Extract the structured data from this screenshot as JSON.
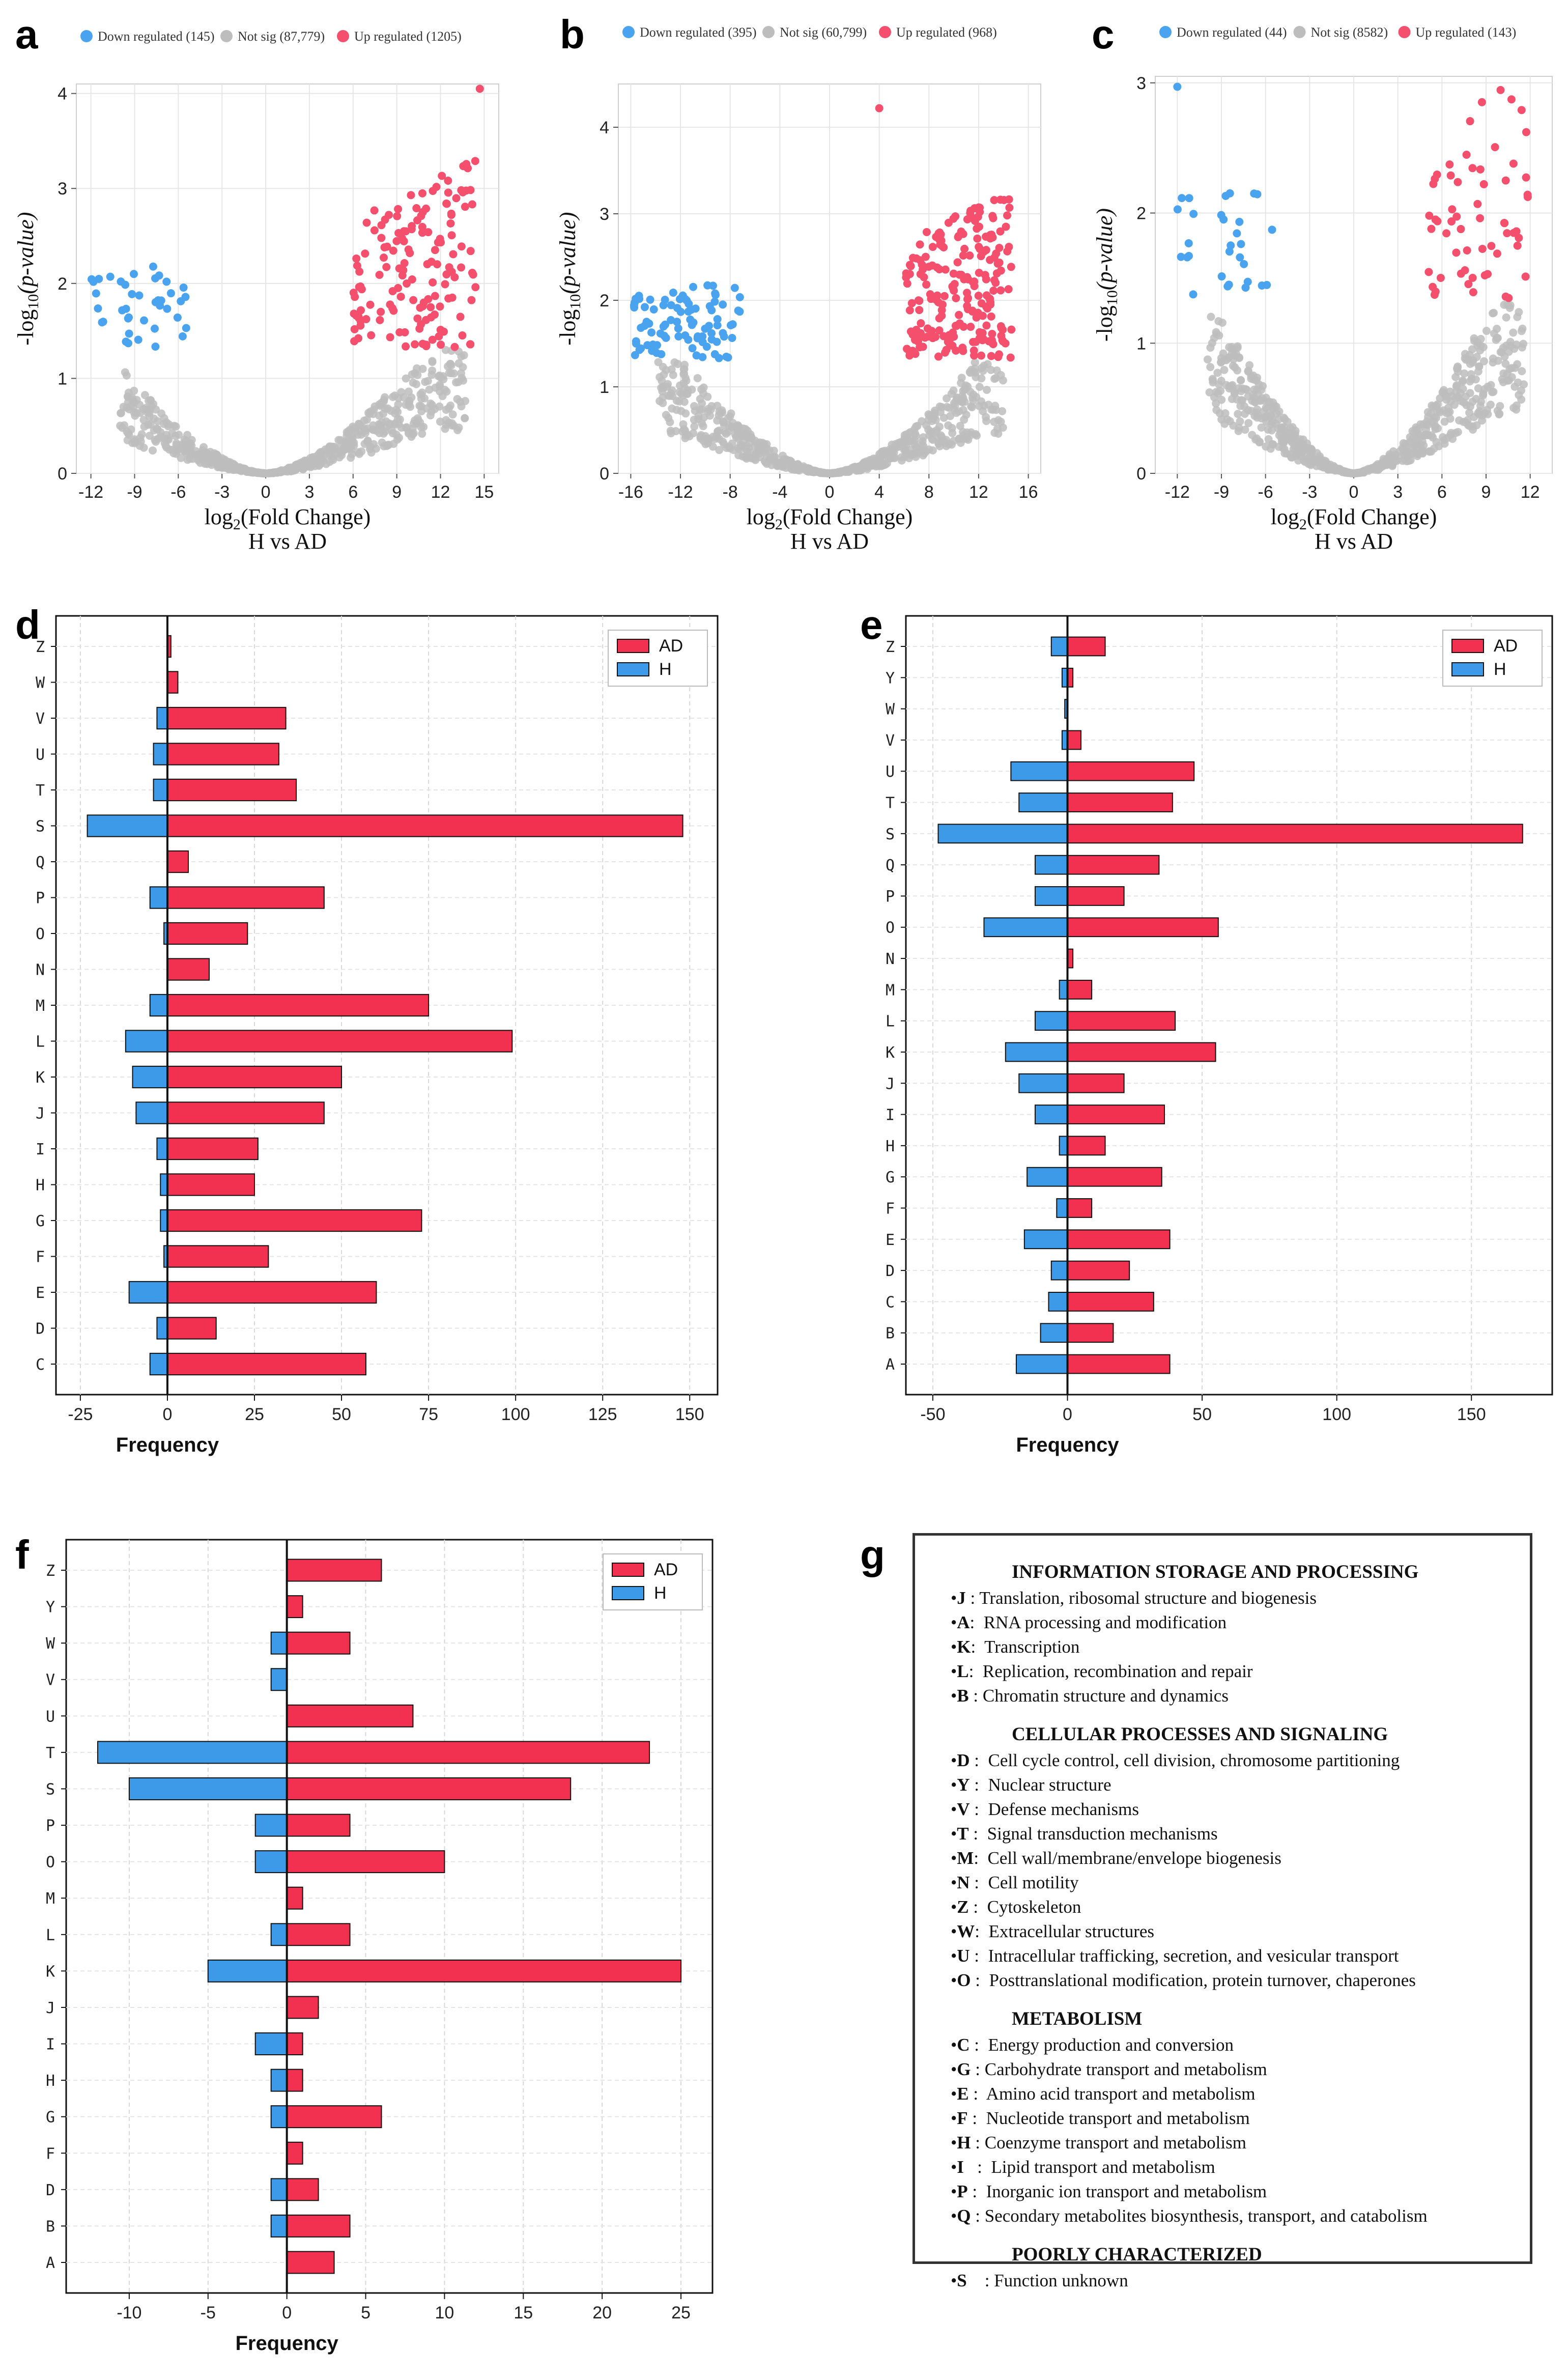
{
  "panels": {
    "a": "a",
    "b": "b",
    "c": "c",
    "d": "d",
    "e": "e",
    "f": "f",
    "g": "g"
  },
  "colors": {
    "down": "#4aa3ef",
    "notsig": "#bdbdbd",
    "up": "#f4506e",
    "AD": "#f2304f",
    "H": "#3d9ae8"
  },
  "chart_data": [
    {
      "id": "a",
      "type": "scatter",
      "legend": [
        "Down regulated (145)",
        "Not sig (87,779)",
        "Up regulated (1205)"
      ],
      "xlabel": "log2(Fold Change)",
      "subtitle": "H vs AD",
      "ylabel": "-log10(p-value)",
      "xticks": [
        -12,
        -9,
        -6,
        -3,
        0,
        3,
        6,
        9,
        12,
        15
      ],
      "yticks": [
        0,
        1,
        2,
        3,
        4
      ],
      "xlim": [
        -13,
        16
      ],
      "ylim": [
        0,
        4.1
      ],
      "threshold": 1.3,
      "fc_range": [
        -12,
        14.7
      ],
      "n_down": 40,
      "n_up": 150,
      "max_point": [
        14.7,
        4.05
      ],
      "seed": 11
    },
    {
      "id": "b",
      "type": "scatter",
      "legend": [
        "Down regulated (395)",
        "Not sig (60,799)",
        "Up regulated (968)"
      ],
      "xlabel": "log2(Fold Change)",
      "subtitle": "H vs AD",
      "ylabel": "-log10(p-value)",
      "xticks": [
        -16,
        -12,
        -8,
        -4,
        0,
        4,
        8,
        12,
        16
      ],
      "yticks": [
        0,
        1,
        2,
        3,
        4
      ],
      "xlim": [
        -17,
        17
      ],
      "ylim": [
        0,
        4.5
      ],
      "threshold": 1.3,
      "fc_range": [
        -15.8,
        15
      ],
      "n_down": 90,
      "n_up": 220,
      "max_point": [
        4,
        4.22
      ],
      "seed": 23
    },
    {
      "id": "c",
      "type": "scatter",
      "legend": [
        "Down regulated (44)",
        "Not sig (8582)",
        "Up regulated (143)"
      ],
      "xlabel": "log2(Fold Change)",
      "subtitle": "H vs AD",
      "ylabel": "-log10(p-value)",
      "xticks": [
        -12,
        -9,
        -6,
        -3,
        0,
        3,
        6,
        9,
        12
      ],
      "yticks": [
        0,
        1,
        2,
        3
      ],
      "xlim": [
        -13.5,
        13.5
      ],
      "ylim": [
        0,
        3.05
      ],
      "threshold": 1.3,
      "fc_range": [
        -12,
        12.6
      ],
      "n_down": 30,
      "n_up": 60,
      "max_point": [
        -12,
        2.97
      ],
      "seed": 37
    },
    {
      "id": "d",
      "type": "bar",
      "categories": [
        "C",
        "D",
        "E",
        "F",
        "G",
        "H",
        "I",
        "J",
        "K",
        "L",
        "M",
        "N",
        "O",
        "P",
        "Q",
        "S",
        "T",
        "U",
        "V",
        "W",
        "Z"
      ],
      "series": [
        {
          "name": "AD",
          "values": [
            57,
            14,
            60,
            29,
            73,
            25,
            26,
            45,
            50,
            99,
            75,
            12,
            23,
            45,
            6,
            148,
            37,
            32,
            34,
            3,
            1
          ]
        },
        {
          "name": "H",
          "values": [
            -5,
            -3,
            -11,
            -1,
            -2,
            -2,
            -3,
            -9,
            -10,
            -12,
            -5,
            0,
            -1,
            -5,
            0,
            -23,
            -4,
            -4,
            -3,
            0,
            0
          ]
        }
      ],
      "xlabel": "Frequency",
      "xticks": [
        -25,
        0,
        25,
        50,
        75,
        100,
        125,
        150
      ],
      "xlim": [
        -32,
        158
      ]
    },
    {
      "id": "e",
      "type": "bar",
      "categories": [
        "A",
        "B",
        "C",
        "D",
        "E",
        "F",
        "G",
        "H",
        "I",
        "J",
        "K",
        "L",
        "M",
        "N",
        "O",
        "P",
        "Q",
        "S",
        "T",
        "U",
        "V",
        "W",
        "Y",
        "Z"
      ],
      "series": [
        {
          "name": "AD",
          "values": [
            38,
            17,
            32,
            23,
            38,
            9,
            35,
            14,
            36,
            21,
            55,
            40,
            9,
            2,
            56,
            21,
            34,
            169,
            39,
            47,
            5,
            0,
            2,
            14
          ]
        },
        {
          "name": "H",
          "values": [
            -19,
            -10,
            -7,
            -6,
            -16,
            -4,
            -15,
            -3,
            -12,
            -18,
            -23,
            -12,
            -3,
            0,
            -31,
            -12,
            -12,
            -48,
            -18,
            -21,
            -2,
            -1,
            -2,
            -6
          ]
        }
      ],
      "xlabel": "Frequency",
      "xticks": [
        -50,
        0,
        50,
        100,
        150
      ],
      "xlim": [
        -60,
        180
      ]
    },
    {
      "id": "f",
      "type": "bar",
      "categories": [
        "A",
        "B",
        "D",
        "F",
        "G",
        "H",
        "I",
        "J",
        "K",
        "L",
        "M",
        "O",
        "P",
        "S",
        "T",
        "U",
        "V",
        "W",
        "Y",
        "Z"
      ],
      "series": [
        {
          "name": "AD",
          "values": [
            3,
            4,
            2,
            1,
            6,
            1,
            1,
            2,
            25,
            4,
            1,
            10,
            4,
            18,
            23,
            8,
            0,
            4,
            1,
            6
          ]
        },
        {
          "name": "H",
          "values": [
            0,
            -1,
            -1,
            0,
            -1,
            -1,
            -2,
            0,
            -5,
            -1,
            0,
            -2,
            -2,
            -10,
            -12,
            0,
            -1,
            -1,
            0,
            0
          ]
        }
      ],
      "xlabel": "Frequency",
      "xticks": [
        -10,
        -5,
        0,
        5,
        10,
        15,
        20,
        25
      ],
      "xlim": [
        -14,
        27
      ]
    }
  ],
  "cog": {
    "sections": [
      {
        "title": "INFORMATION STORAGE AND PROCESSING",
        "items": [
          {
            "code": "J",
            "sep": " : ",
            "text": "Translation, ribosomal structure and biogenesis"
          },
          {
            "code": "A",
            "sep": ":  ",
            "text": "RNA processing and modification"
          },
          {
            "code": "K",
            "sep": ":  ",
            "text": "Transcription"
          },
          {
            "code": "L",
            "sep": ":  ",
            "text": "Replication, recombination and repair"
          },
          {
            "code": "B",
            "sep": " : ",
            "text": "Chromatin structure and dynamics"
          }
        ]
      },
      {
        "title": "CELLULAR PROCESSES AND SIGNALING",
        "items": [
          {
            "code": "D",
            "sep": " :  ",
            "text": "Cell cycle control, cell division, chromosome partitioning"
          },
          {
            "code": "Y",
            "sep": " :  ",
            "text": "Nuclear structure"
          },
          {
            "code": "V",
            "sep": " :  ",
            "text": "Defense mechanisms"
          },
          {
            "code": "T",
            "sep": " :  ",
            "text": "Signal transduction mechanisms"
          },
          {
            "code": "M",
            "sep": ":  ",
            "text": "Cell wall/membrane/envelope biogenesis"
          },
          {
            "code": "N",
            "sep": " :  ",
            "text": "Cell motility"
          },
          {
            "code": "Z",
            "sep": " :  ",
            "text": "Cytoskeleton"
          },
          {
            "code": "W",
            "sep": ":  ",
            "text": "Extracellular structures"
          },
          {
            "code": "U",
            "sep": " :  ",
            "text": "Intracellular trafficking, secretion, and vesicular transport"
          },
          {
            "code": "O",
            "sep": " :  ",
            "text": "Posttranslational modification, protein turnover, chaperones"
          }
        ]
      },
      {
        "title": "METABOLISM",
        "items": [
          {
            "code": "C",
            "sep": " :  ",
            "text": "Energy production and conversion"
          },
          {
            "code": "G",
            "sep": " : ",
            "text": "Carbohydrate transport and metabolism"
          },
          {
            "code": "E",
            "sep": " :  ",
            "text": "Amino acid transport and metabolism"
          },
          {
            "code": "F",
            "sep": " :  ",
            "text": "Nucleotide transport and metabolism"
          },
          {
            "code": "H",
            "sep": " : ",
            "text": "Coenzyme transport and metabolism"
          },
          {
            "code": "I",
            "sep": "   :  ",
            "text": "Lipid transport and metabolism"
          },
          {
            "code": "P",
            "sep": " :  ",
            "text": "Inorganic ion transport and metabolism"
          },
          {
            "code": "Q",
            "sep": " : ",
            "text": "Secondary metabolites biosynthesis, transport, and catabolism"
          }
        ]
      },
      {
        "title": "POORLY CHARACTERIZED",
        "items": [
          {
            "code": "S",
            "sep": "    : ",
            "text": "Function unknown"
          }
        ]
      }
    ]
  }
}
